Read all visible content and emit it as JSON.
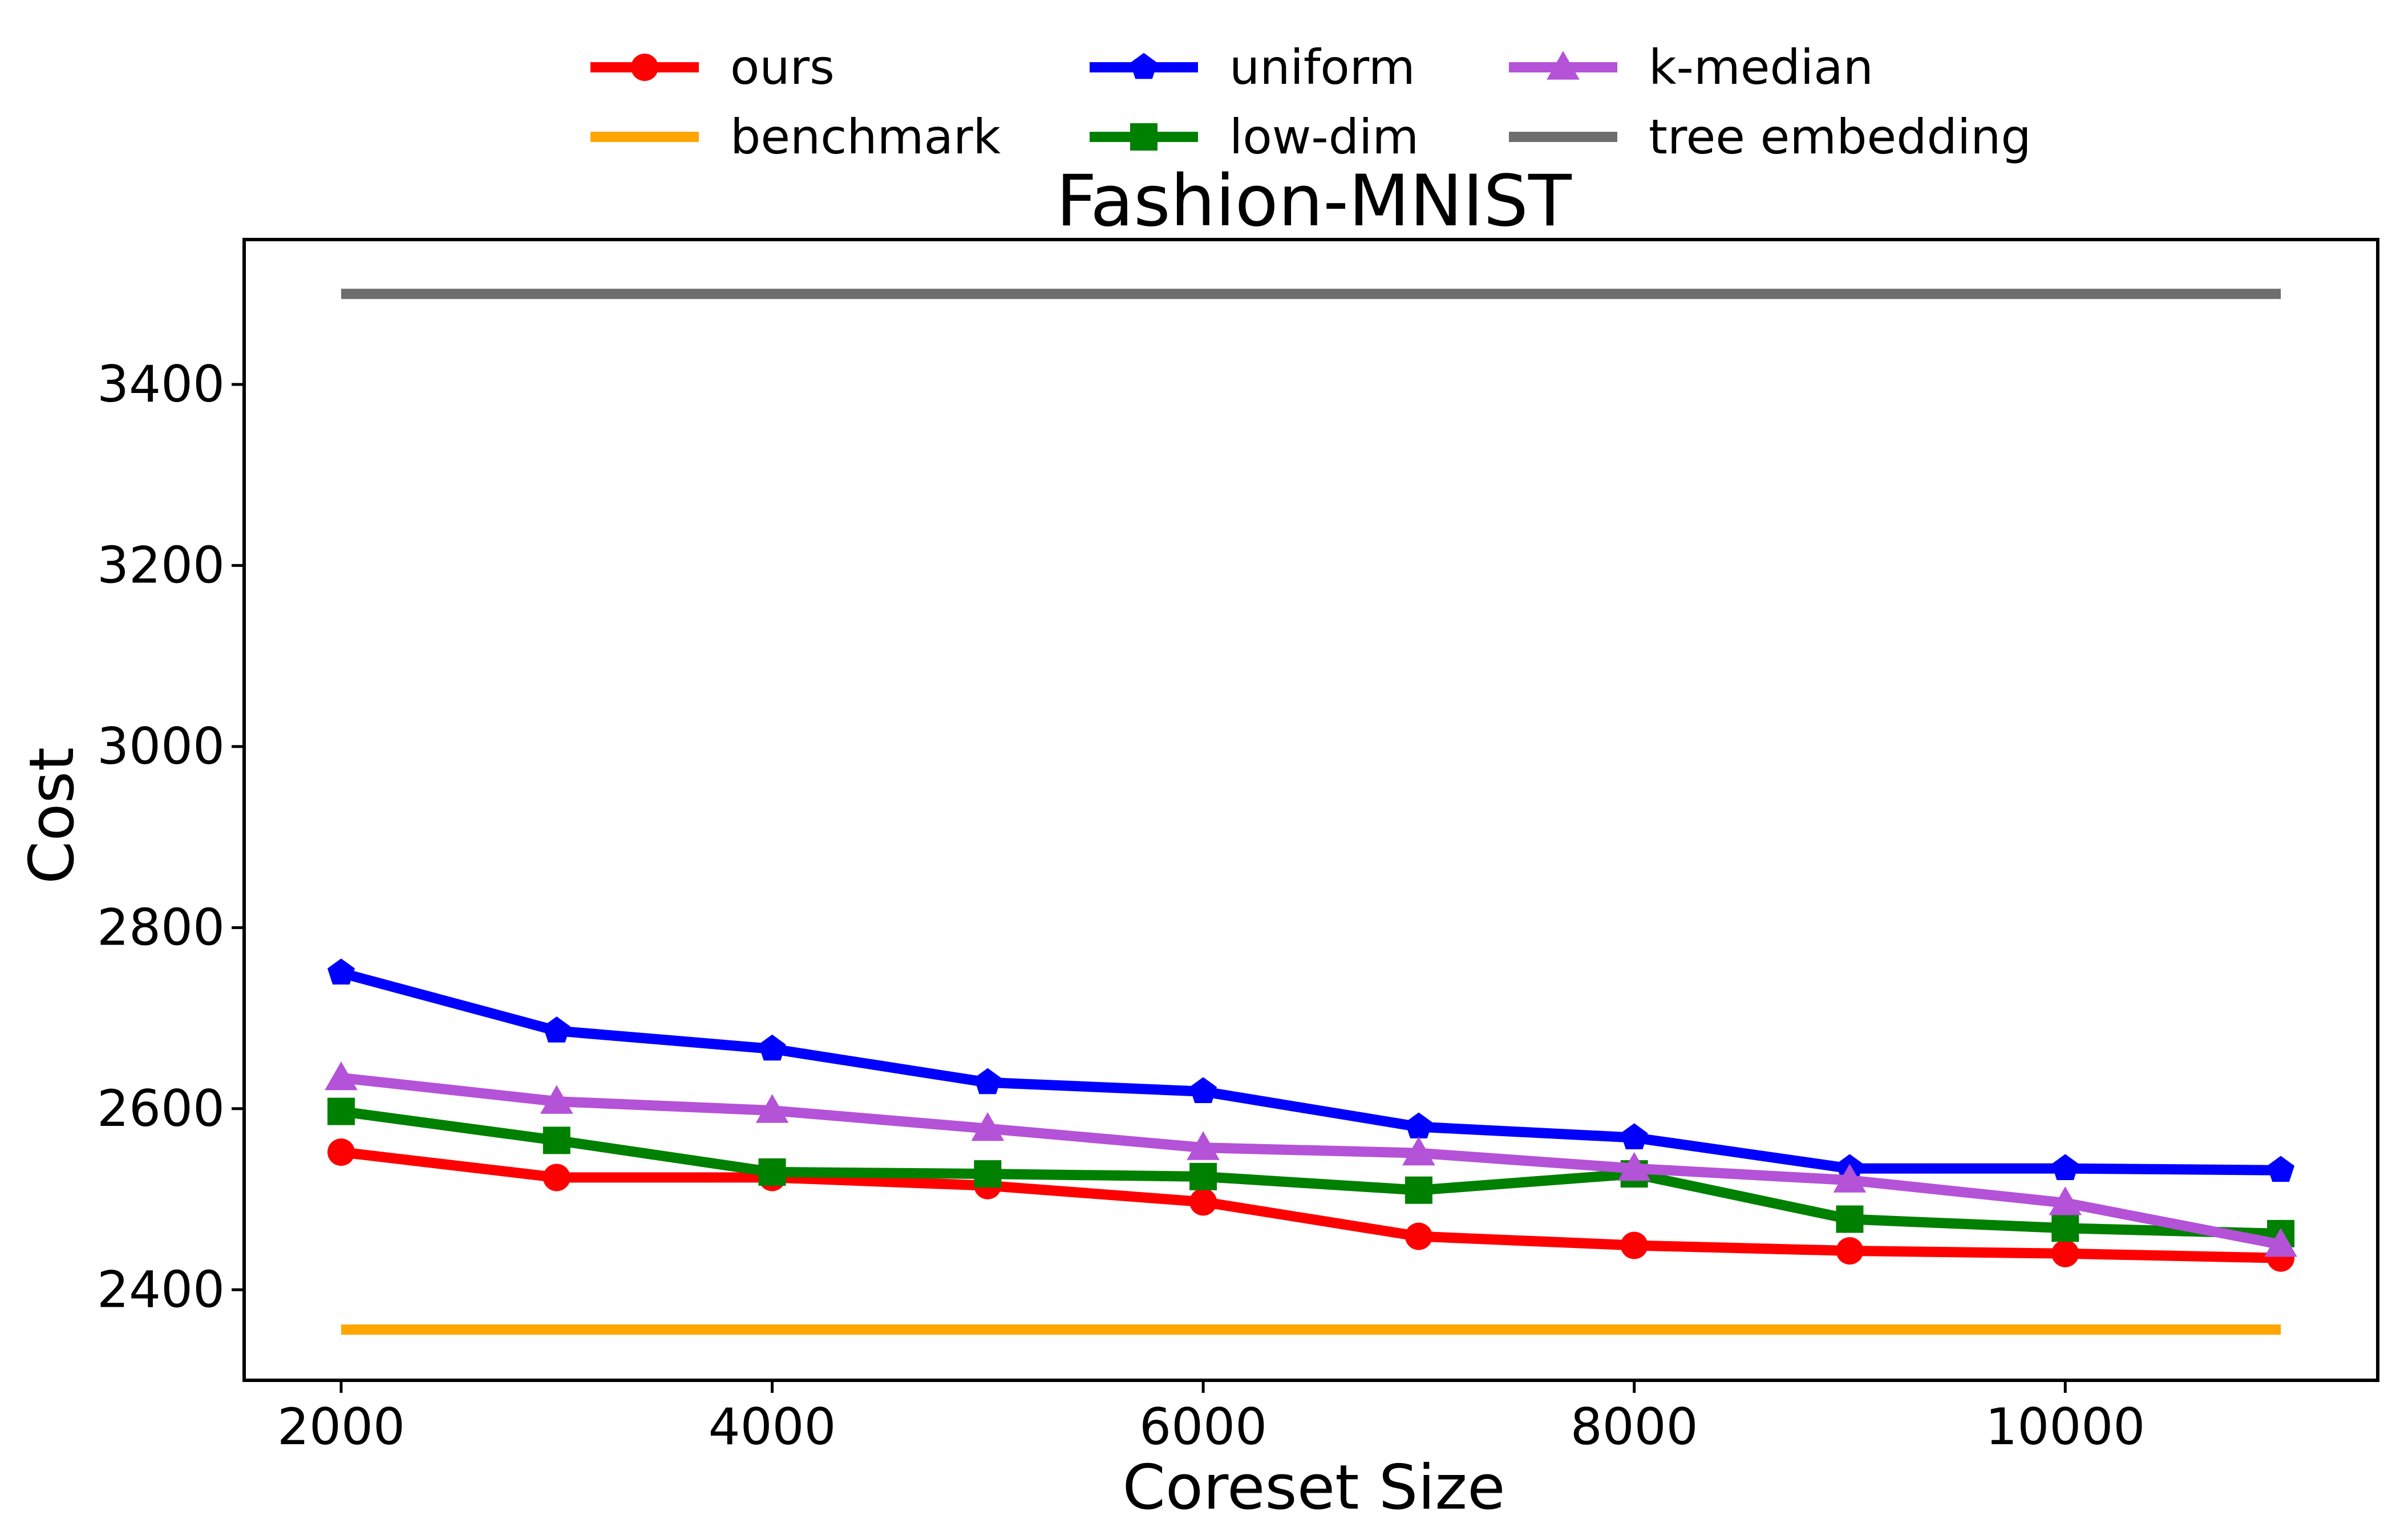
{
  "chart_data": {
    "type": "line",
    "title": "Fashion-MNIST",
    "xlabel": "Coreset Size",
    "ylabel": "Cost",
    "xlim": [
      1550,
      11450
    ],
    "ylim": [
      2300,
      3560
    ],
    "xticks": [
      2000,
      4000,
      6000,
      8000,
      10000
    ],
    "yticks": [
      2400,
      2600,
      2800,
      3000,
      3200,
      3400
    ],
    "xtick_labels": [
      "2000",
      "4000",
      "6000",
      "8000",
      "10000"
    ],
    "ytick_labels": [
      "2400",
      "2600",
      "2800",
      "3000",
      "3200",
      "3400"
    ],
    "grid": false,
    "legend_position": "top-center",
    "x": [
      2000,
      3000,
      4000,
      5000,
      6000,
      7000,
      8000,
      9000,
      10000,
      11000
    ],
    "series": [
      {
        "name": "ours",
        "color": "#ff0000",
        "marker": "circle",
        "values": [
          2552,
          2524,
          2524,
          2515,
          2497,
          2459,
          2449,
          2443,
          2440,
          2435
        ]
      },
      {
        "name": "benchmark",
        "color": "#ffa500",
        "marker": "none",
        "values": [
          2356,
          2356,
          2356,
          2356,
          2356,
          2356,
          2356,
          2356,
          2356,
          2356
        ]
      },
      {
        "name": "uniform",
        "color": "#0000ff",
        "marker": "pentagon",
        "values": [
          2750,
          2686,
          2666,
          2629,
          2619,
          2580,
          2568,
          2534,
          2534,
          2532
        ]
      },
      {
        "name": "low-dim",
        "color": "#008000",
        "marker": "square",
        "values": [
          2597,
          2565,
          2530,
          2528,
          2525,
          2510,
          2528,
          2478,
          2468,
          2462
        ]
      },
      {
        "name": "k-median",
        "color": "#b452d8",
        "marker": "triangle",
        "values": [
          2634,
          2608,
          2598,
          2578,
          2557,
          2551,
          2534,
          2521,
          2496,
          2450
        ]
      },
      {
        "name": "tree embedding",
        "color": "#6e6e6e",
        "marker": "none",
        "values": [
          3500,
          3500,
          3500,
          3500,
          3500,
          3500,
          3500,
          3500,
          3500,
          3500
        ]
      }
    ]
  }
}
